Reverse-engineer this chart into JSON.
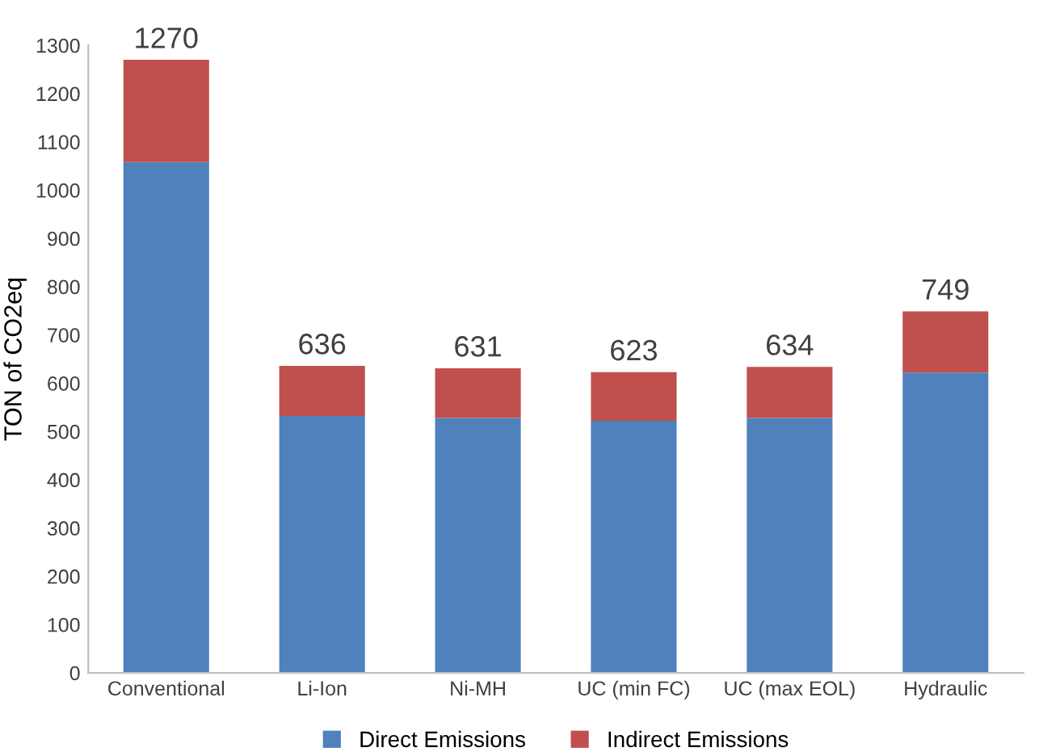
{
  "chart_data": {
    "type": "bar",
    "stacked": true,
    "ylabel": "TON of CO2eq",
    "categories": [
      "Conventional",
      "Li-Ion",
      "Ni-MH",
      "UC (min FC)",
      "UC (max EOL)",
      "Hydraulic"
    ],
    "series": [
      {
        "name": "Direct Emissions",
        "color": "#4f81bd",
        "values": [
          1058,
          532,
          528,
          522,
          528,
          622
        ]
      },
      {
        "name": "Indirect Emissions",
        "color": "#c0504d",
        "values": [
          212,
          104,
          103,
          101,
          106,
          127
        ]
      }
    ],
    "totals": [
      "1270",
      "636",
      "631",
      "623",
      "634",
      "749"
    ],
    "ylim": [
      0,
      1300
    ],
    "yticks": [
      0,
      100,
      200,
      300,
      400,
      500,
      600,
      700,
      800,
      900,
      1000,
      1100,
      1200,
      1300
    ],
    "grid": false,
    "legend": "bottom"
  }
}
